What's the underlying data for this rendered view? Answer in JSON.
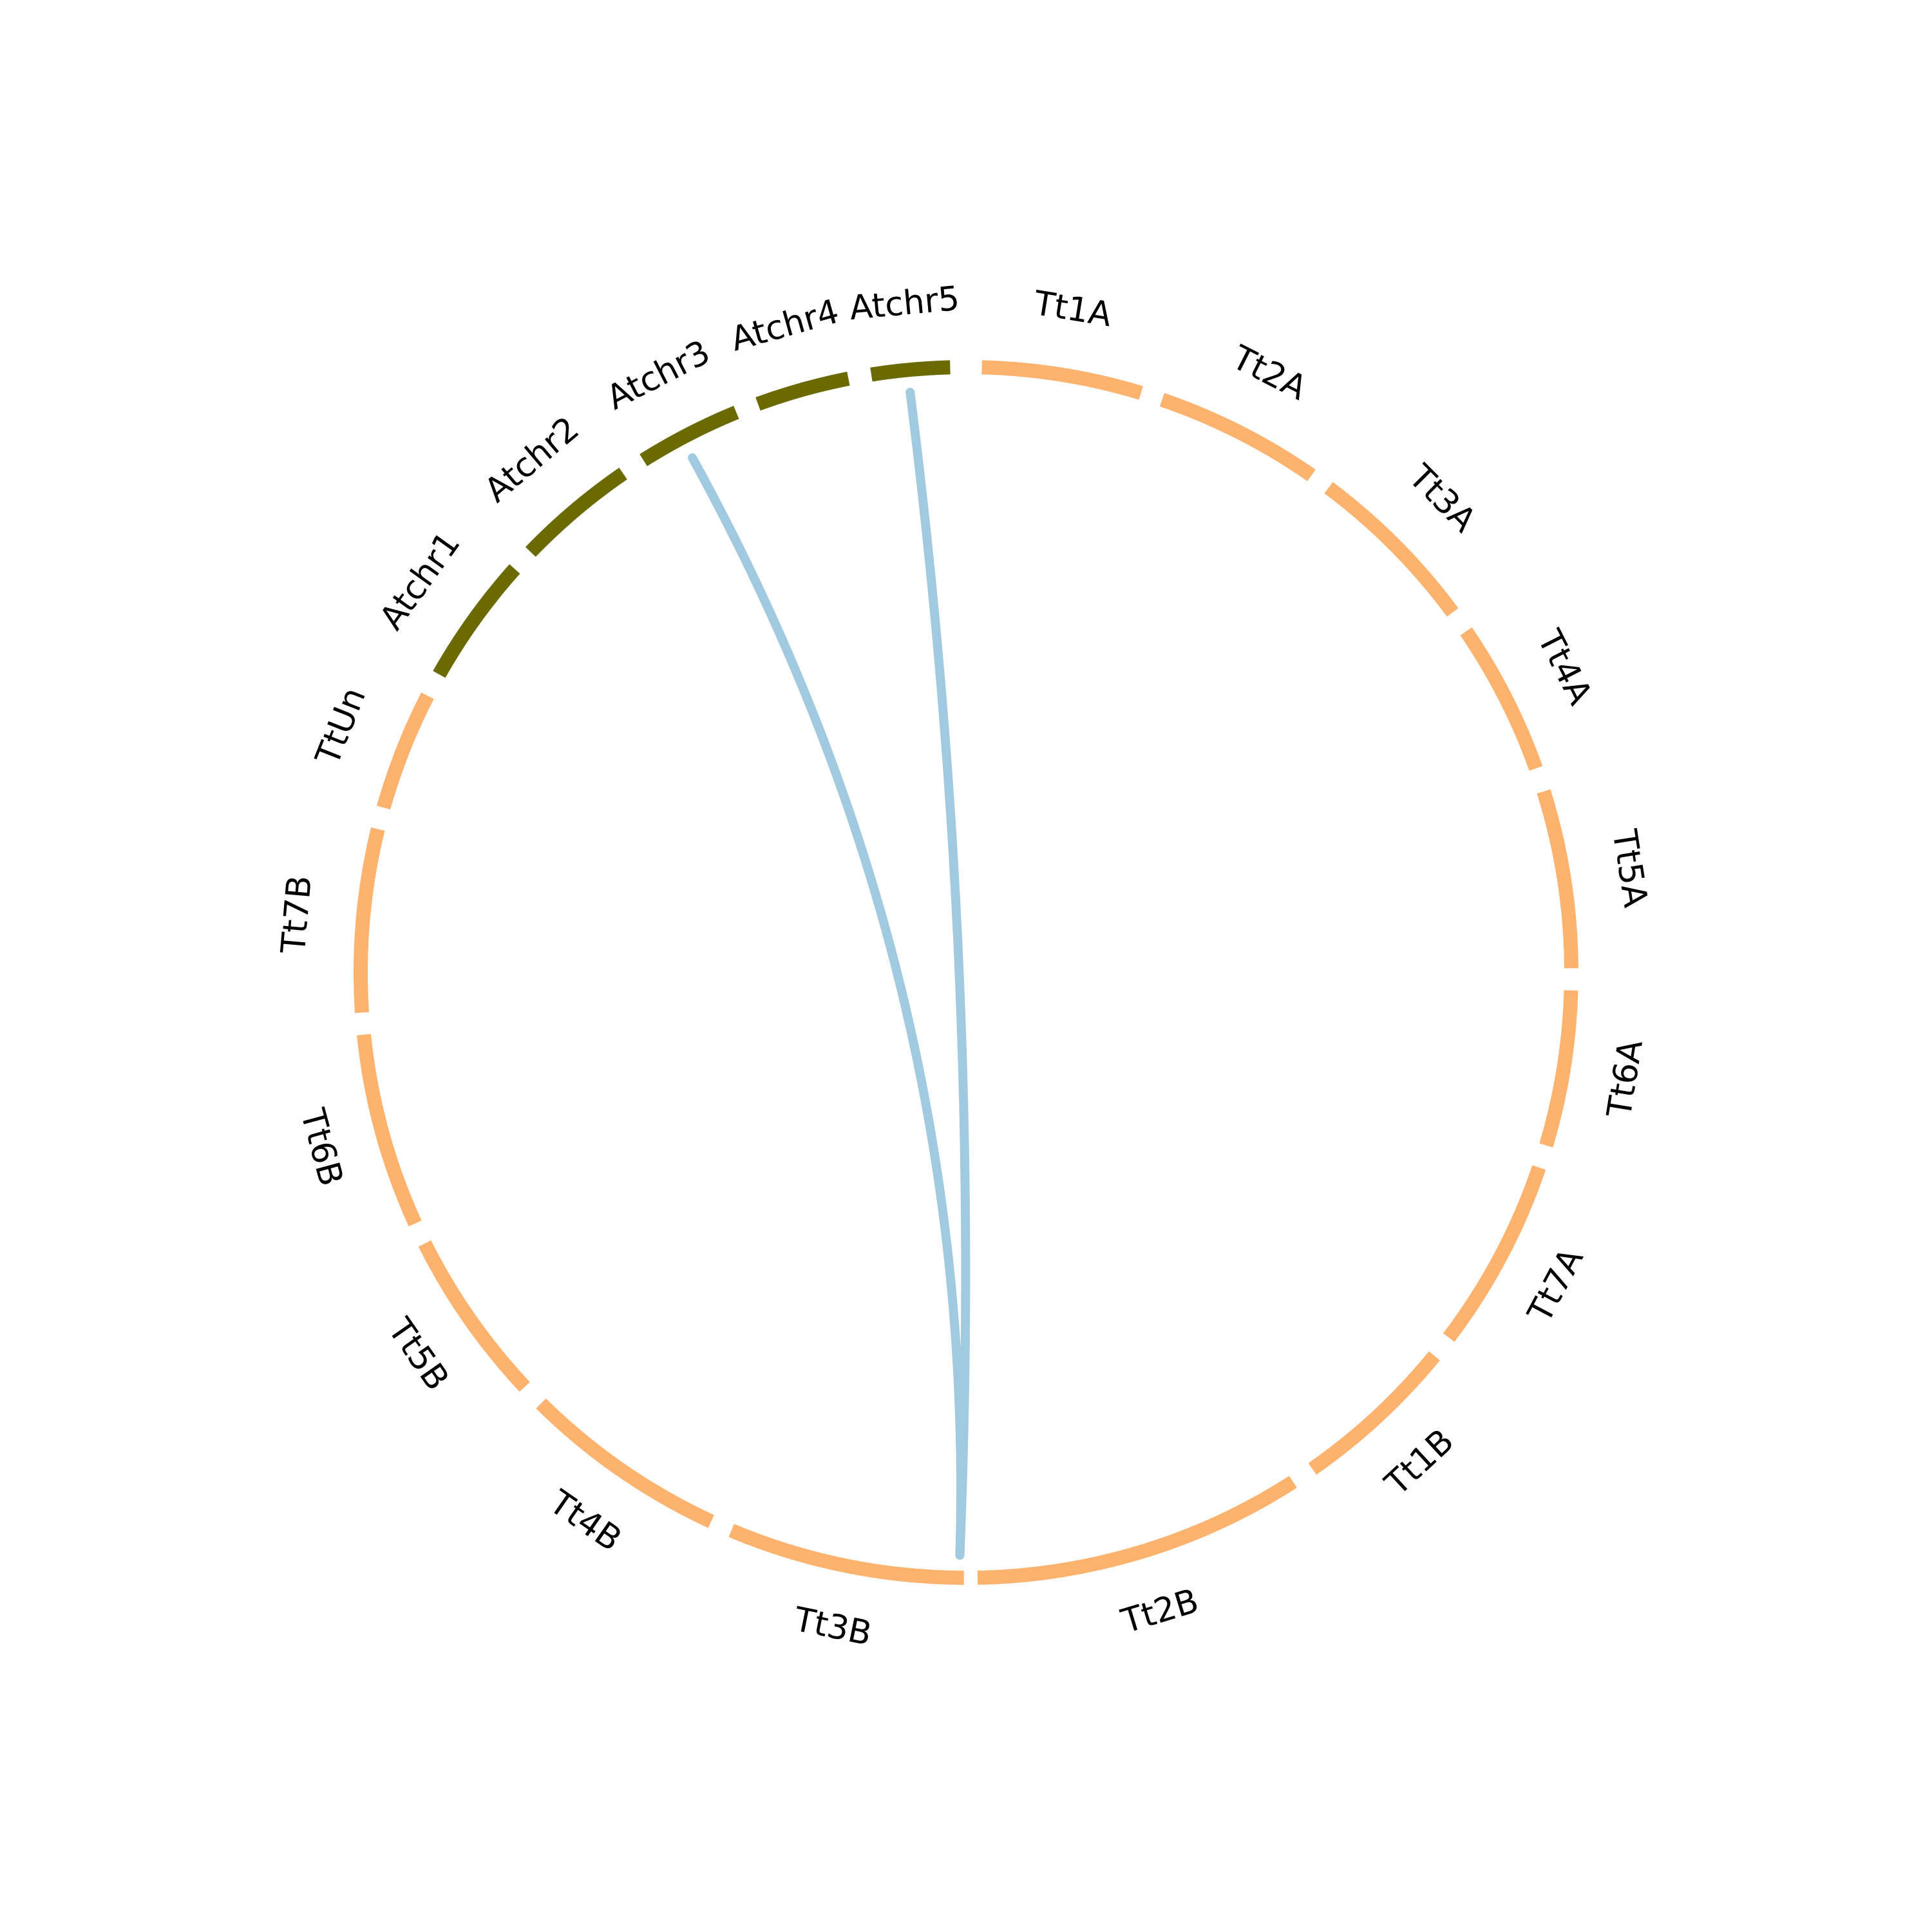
{
  "diagram": {
    "type": "circos",
    "colors": {
      "tt": "#fdb26e",
      "at": "#6b6a00",
      "link": "#a1cae1",
      "background": "#ffffff",
      "label": "#000000"
    },
    "segments": [
      {
        "label": "Tt1A",
        "group": "tt"
      },
      {
        "label": "Tt2A",
        "group": "tt"
      },
      {
        "label": "Tt3A",
        "group": "tt"
      },
      {
        "label": "Tt4A",
        "group": "tt"
      },
      {
        "label": "Tt5A",
        "group": "tt"
      },
      {
        "label": "Tt6A",
        "group": "tt"
      },
      {
        "label": "Tt7A",
        "group": "tt"
      },
      {
        "label": "Tt1B",
        "group": "tt"
      },
      {
        "label": "Tt2B",
        "group": "tt"
      },
      {
        "label": "Tt3B",
        "group": "tt"
      },
      {
        "label": "Tt4B",
        "group": "tt"
      },
      {
        "label": "Tt5B",
        "group": "tt"
      },
      {
        "label": "Tt6B",
        "group": "tt"
      },
      {
        "label": "Tt7B",
        "group": "tt"
      },
      {
        "label": "TtUn",
        "group": "tt"
      },
      {
        "label": "Atchr1",
        "group": "at"
      },
      {
        "label": "Atchr2",
        "group": "at"
      },
      {
        "label": "Atchr3",
        "group": "at"
      },
      {
        "label": "Atchr4",
        "group": "at"
      },
      {
        "label": "Atchr5",
        "group": "at"
      }
    ],
    "links": [
      {
        "from": "Atchr3",
        "to": "Tt3B"
      },
      {
        "from": "Atchr5",
        "to": "Tt3B"
      }
    ]
  }
}
